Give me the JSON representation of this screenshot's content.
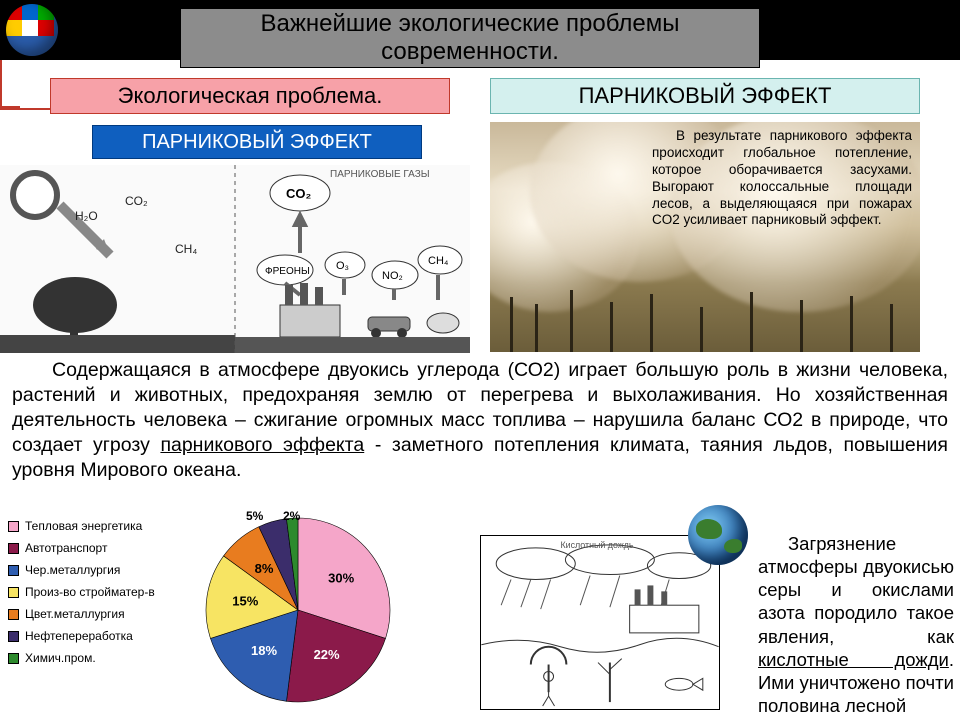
{
  "header": {
    "title": "Важнейшие экологические проблемы современности."
  },
  "boxes": {
    "eco_problem": "Экологическая проблема.",
    "greenhouse_title_right": "ПАРНИКОВЫЙ ЭФФЕКТ",
    "greenhouse_title_left": "ПАРНИКОВЫЙ ЭФФЕКТ"
  },
  "diagram": {
    "caption": "ПАРНИКОВЫЕ ГАЗЫ",
    "labels": [
      "H₂O",
      "CO₂",
      "CH₄",
      "CO₂",
      "ФРЕОНЫ",
      "O₃",
      "NO₂",
      "CH₄"
    ]
  },
  "photo_caption": "В результате парникового эффекта происходит глобальное потепление, которое оборачивается засухами. Выгорают колоссальные площади лесов, а выделяющаяся при пожарах CO2 усиливает парниковый эффект.",
  "main_paragraph_html": "Содержащаяся в атмосфере двуокись углерода (СО2) играет большую роль в жизни человека, растений и животных, предохраняя землю от перегрева и выхолаживания. Но хозяйственная деятельность человека – сжигание огромных масс топлива – нарушила баланс СО2 в природе, что создает угрозу <span class=\"u\">парникового эффекта</span>  - заметного потепления климата, таяния льдов, повышения уровня Мирового океана.",
  "pie": {
    "type": "pie",
    "title_fontsize": 12,
    "label_fontsize": 12,
    "background_color": "#ffffff",
    "series": [
      {
        "label": "Тепловая энергетика",
        "value": 30,
        "color": "#f5a6c9",
        "pct_label": "30%"
      },
      {
        "label": "Автотранспорт",
        "value": 22,
        "color": "#8b1a4a",
        "pct_label": "22%"
      },
      {
        "label": "Чер.металлургия",
        "value": 18,
        "color": "#2e5db0",
        "pct_label": "18%"
      },
      {
        "label": "Произ-во стройматер-в",
        "value": 15,
        "color": "#f7e463",
        "pct_label": "15%"
      },
      {
        "label": "Цвет.металлургия",
        "value": 8,
        "color": "#e87c1f",
        "pct_label": "8%"
      },
      {
        "label": "Нефтепереработка",
        "value": 5,
        "color": "#3b2d6b",
        "pct_label": "5%"
      },
      {
        "label": "Химич.пром.",
        "value": 2,
        "color": "#2d8a2d",
        "pct_label": "2%"
      }
    ]
  },
  "right_paragraph_html": "Загрязнение атмосферы двуокисью серы и окислами азота породило такое явления, как <span class=\"u\">кислотные дожди</span>. Ими уничтожено почти половина лесной",
  "colors": {
    "eco_box_bg": "#f7a1a8",
    "eco_box_border": "#c0392b",
    "gh_right_bg": "#d4f0ee",
    "gh_left_bg": "#0f5fbf",
    "title_bg": "#8c8c8c",
    "connector": "#c0392b"
  }
}
